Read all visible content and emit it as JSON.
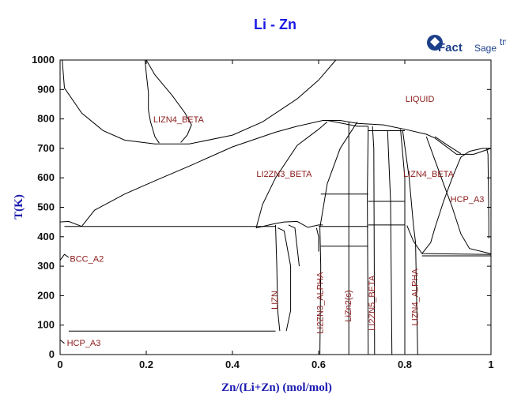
{
  "chart_data": {
    "type": "line",
    "title": "Li - Zn",
    "xlabel": "Zn/(Li+Zn) (mol/mol)",
    "ylabel": "T(K)",
    "xlim": [
      0,
      1
    ],
    "ylim": [
      0,
      1000
    ],
    "x_ticks": [
      "0",
      "0.2",
      "0.4",
      "0.6",
      "0.8",
      "1"
    ],
    "y_ticks": [
      "0",
      "100",
      "200",
      "300",
      "400",
      "500",
      "600",
      "700",
      "800",
      "900",
      "1000"
    ],
    "grid": false,
    "logo": {
      "main": "Fact",
      "sub": "Sage",
      "mark": "tm"
    },
    "line_color": "#000000",
    "label_color": "#8b1a1a",
    "phase_labels": [
      {
        "text": "LIQUID",
        "x": 0.835,
        "y": 858,
        "rotate": 0
      },
      {
        "text": "LIZN4_BETA",
        "x": 0.275,
        "y": 788,
        "rotate": 0
      },
      {
        "text": "LI2ZN3_BETA",
        "x": 0.52,
        "y": 603,
        "rotate": 0
      },
      {
        "text": "LIZN4_BETA",
        "x": 0.855,
        "y": 603,
        "rotate": 0
      },
      {
        "text": "HCP_A3",
        "x": 0.945,
        "y": 518,
        "rotate": 0
      },
      {
        "text": "BCC_A2",
        "x": 0.062,
        "y": 315,
        "rotate": 0
      },
      {
        "text": "HCP_A3",
        "x": 0.055,
        "y": 30,
        "rotate": 0
      },
      {
        "text": "LIZN",
        "x": 0.505,
        "y": 185,
        "rotate": -90
      },
      {
        "text": "LI2ZN3_ALPHA",
        "x": 0.61,
        "y": 175,
        "rotate": -90
      },
      {
        "text": "LiZn2(s)",
        "x": 0.675,
        "y": 165,
        "rotate": -90
      },
      {
        "text": "LI2ZN5_BETA",
        "x": 0.73,
        "y": 175,
        "rotate": -90
      },
      {
        "text": "LIZN4_ALPHA",
        "x": 0.83,
        "y": 195,
        "rotate": -90
      }
    ],
    "series": [
      {
        "points": [
          [
            0,
            1000
          ],
          [
            0,
            450
          ],
          [
            0.02,
            452
          ],
          [
            0.05,
            435
          ]
        ]
      },
      {
        "points": [
          [
            0,
            430
          ],
          [
            0,
            80
          ]
        ]
      },
      {
        "points": [
          [
            0.005,
            1000
          ],
          [
            0.01,
            905
          ],
          [
            0.05,
            820
          ],
          [
            0.1,
            760
          ],
          [
            0.15,
            728
          ],
          [
            0.22,
            715
          ],
          [
            0.3,
            715
          ],
          [
            0.4,
            745
          ],
          [
            0.47,
            790
          ],
          [
            0.55,
            868
          ],
          [
            0.6,
            932
          ],
          [
            0.64,
            1000
          ]
        ]
      },
      {
        "points": [
          [
            0.2,
            1000
          ],
          [
            0.22,
            950
          ],
          [
            0.26,
            880
          ],
          [
            0.29,
            820
          ],
          [
            0.305,
            780
          ],
          [
            0.295,
            745
          ],
          [
            0.28,
            720
          ]
        ]
      },
      {
        "points": [
          [
            0.197,
            1000
          ],
          [
            0.2,
            955
          ],
          [
            0.205,
            890
          ],
          [
            0.205,
            830
          ],
          [
            0.21,
            790
          ],
          [
            0.22,
            740
          ],
          [
            0.23,
            718
          ]
        ]
      },
      {
        "points": [
          [
            0.05,
            435
          ],
          [
            0.08,
            490
          ],
          [
            0.15,
            545
          ],
          [
            0.22,
            590
          ],
          [
            0.3,
            640
          ],
          [
            0.4,
            705
          ],
          [
            0.5,
            755
          ],
          [
            0.55,
            775
          ],
          [
            0.61,
            795
          ],
          [
            0.65,
            795
          ],
          [
            0.69,
            785
          ],
          [
            0.75,
            780
          ],
          [
            0.8,
            765
          ],
          [
            0.85,
            748
          ],
          [
            0.87,
            735
          ],
          [
            0.92,
            680
          ],
          [
            0.96,
            680
          ],
          [
            1,
            700
          ]
        ]
      },
      {
        "points": [
          [
            0.455,
            430
          ],
          [
            0.47,
            510
          ],
          [
            0.5,
            600
          ],
          [
            0.55,
            710
          ],
          [
            0.6,
            765
          ],
          [
            0.62,
            790
          ]
        ]
      },
      {
        "points": [
          [
            0.455,
            430
          ],
          [
            0.5,
            445
          ],
          [
            0.52,
            450
          ],
          [
            0.55,
            452
          ],
          [
            0.575,
            432
          ],
          [
            0.6,
            440
          ],
          [
            0.61,
            440
          ]
        ]
      },
      {
        "points": [
          [
            0.5,
            440
          ],
          [
            0.503,
            300
          ],
          [
            0.505,
            150
          ],
          [
            0.51,
            80
          ]
        ]
      },
      {
        "points": [
          [
            0.505,
            430
          ],
          [
            0.52,
            420
          ],
          [
            0.535,
            300
          ],
          [
            0.535,
            150
          ],
          [
            0.525,
            80
          ]
        ]
      },
      {
        "points": [
          [
            0.53,
            440
          ],
          [
            0.545,
            430
          ],
          [
            0.555,
            300
          ]
        ]
      },
      {
        "points": [
          [
            0.595,
            430
          ],
          [
            0.6,
            400
          ],
          [
            0.6,
            350
          ]
        ]
      },
      {
        "points": [
          [
            0.603,
            430
          ],
          [
            0.605,
            300
          ],
          [
            0.603,
            0
          ]
        ]
      },
      {
        "points": [
          [
            0.603,
            430
          ],
          [
            0.62,
            580
          ],
          [
            0.65,
            700
          ],
          [
            0.69,
            790
          ]
        ]
      },
      {
        "points": [
          [
            0.67,
            790
          ],
          [
            0.67,
            0
          ]
        ]
      },
      {
        "points": [
          [
            0.715,
            775
          ],
          [
            0.713,
            540
          ],
          [
            0.715,
            0
          ]
        ]
      },
      {
        "points": [
          [
            0.725,
            775
          ],
          [
            0.728,
            700
          ],
          [
            0.73,
            0
          ]
        ]
      },
      {
        "points": [
          [
            0.76,
            762
          ],
          [
            0.767,
            520
          ],
          [
            0.77,
            0
          ]
        ]
      },
      {
        "points": [
          [
            0.795,
            760
          ],
          [
            0.81,
            600
          ],
          [
            0.82,
            440
          ],
          [
            0.825,
            380
          ],
          [
            0.83,
            0
          ]
        ]
      },
      {
        "points": [
          [
            0.79,
            765
          ],
          [
            0.8,
            600
          ],
          [
            0.8,
            500
          ],
          [
            0.8,
            0
          ]
        ]
      },
      {
        "points": [
          [
            0.805,
            438
          ],
          [
            0.82,
            385
          ],
          [
            0.84,
            343
          ],
          [
            1,
            340
          ]
        ]
      },
      {
        "points": [
          [
            0.85,
            740
          ],
          [
            0.87,
            660
          ],
          [
            0.89,
            580
          ],
          [
            0.91,
            500
          ],
          [
            0.93,
            410
          ],
          [
            0.95,
            360
          ],
          [
            1,
            342
          ]
        ]
      },
      {
        "points": [
          [
            0.84,
            343
          ],
          [
            0.86,
            380
          ],
          [
            0.87,
            430
          ],
          [
            0.89,
            520
          ],
          [
            0.91,
            600
          ],
          [
            0.93,
            670
          ],
          [
            0.95,
            690
          ],
          [
            0.98,
            700
          ],
          [
            1,
            700
          ]
        ]
      },
      {
        "points": [
          [
            0.87,
            740
          ],
          [
            0.9,
            710
          ],
          [
            0.93,
            682
          ]
        ]
      },
      {
        "points": [
          [
            0.99,
            700
          ],
          [
            0.993,
            680
          ],
          [
            0.995,
            450
          ],
          [
            0.995,
            395
          ]
        ]
      },
      {
        "points": [
          [
            0.02,
            80
          ],
          [
            0.5,
            80
          ]
        ]
      },
      {
        "points": [
          [
            0.01,
            435
          ],
          [
            0.5,
            435
          ]
        ]
      },
      {
        "points": [
          [
            0.6,
            435
          ],
          [
            0.715,
            435
          ]
        ]
      },
      {
        "points": [
          [
            0.605,
            545
          ],
          [
            0.715,
            545
          ]
        ]
      },
      {
        "points": [
          [
            0.605,
            368
          ],
          [
            0.715,
            368
          ]
        ]
      },
      {
        "points": [
          [
            0.715,
            520
          ],
          [
            0.8,
            520
          ]
        ]
      },
      {
        "points": [
          [
            0.715,
            440
          ],
          [
            0.8,
            440
          ]
        ]
      },
      {
        "points": [
          [
            0.62,
            795
          ],
          [
            0.69,
            775
          ],
          [
            0.715,
            775
          ]
        ]
      },
      {
        "points": [
          [
            0.715,
            760
          ],
          [
            0.8,
            760
          ]
        ]
      },
      {
        "points": [
          [
            0.84,
            335
          ],
          [
            1,
            335
          ]
        ]
      },
      {
        "points": [
          [
            0,
            50
          ],
          [
            0.01,
            38
          ]
        ]
      },
      {
        "points": [
          [
            0,
            320
          ],
          [
            0.01,
            340
          ],
          [
            0.02,
            330
          ]
        ]
      }
    ]
  }
}
